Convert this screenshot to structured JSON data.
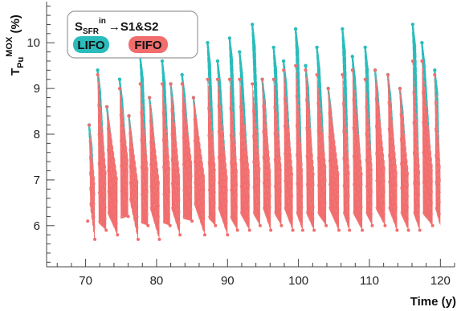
{
  "chart_data": {
    "type": "scatter",
    "title": "",
    "xlabel": "Time (y)",
    "ylabel": {
      "main": "T",
      "sub": "Pu",
      "sup": "MOX",
      "unit": " (%)"
    },
    "xlim": [
      64.5,
      122
    ],
    "ylim": [
      5.1,
      10.9
    ],
    "x_ticks": [
      70,
      80,
      90,
      100,
      110,
      120
    ],
    "y_ticks": [
      6,
      7,
      8,
      9,
      10
    ],
    "grid": false,
    "legend": {
      "placement": "top-left",
      "title": {
        "main": "S",
        "sub": "SFR",
        "sup": "in",
        "arrow": "→",
        "rest": "S1&S2"
      }
    },
    "series": [
      {
        "name": "LIFO",
        "color": "#2bbcbc",
        "peaks": [
          [
            70.5,
            8.2
          ],
          [
            71.7,
            9.4
          ],
          [
            73.0,
            8.6
          ],
          [
            74.8,
            9.2
          ],
          [
            76.1,
            8.4
          ],
          [
            77.7,
            9.7
          ],
          [
            79.0,
            8.8
          ],
          [
            80.8,
            9.6
          ],
          [
            82.0,
            9.1
          ],
          [
            83.6,
            9.3
          ],
          [
            85.2,
            8.8
          ],
          [
            87.2,
            10.0
          ],
          [
            88.6,
            9.6
          ],
          [
            90.3,
            10.1
          ],
          [
            91.7,
            9.8
          ],
          [
            93.5,
            10.4
          ],
          [
            94.9,
            9.2
          ],
          [
            96.5,
            9.9
          ],
          [
            97.9,
            9.6
          ],
          [
            99.6,
            10.3
          ],
          [
            101.0,
            9.5
          ],
          [
            102.6,
            9.9
          ],
          [
            104.2,
            9.0
          ],
          [
            106.2,
            10.3
          ],
          [
            107.6,
            9.7
          ],
          [
            109.4,
            9.9
          ],
          [
            110.8,
            9.4
          ],
          [
            112.6,
            9.3
          ],
          [
            114.3,
            9.0
          ],
          [
            116.1,
            10.4
          ],
          [
            117.4,
            10.0
          ],
          [
            119.2,
            9.4
          ]
        ]
      },
      {
        "name": "FIFO",
        "color": "#f26d6d",
        "peaks": [
          [
            70.5,
            8.2
          ],
          [
            71.7,
            9.3
          ],
          [
            73.0,
            8.6
          ],
          [
            74.8,
            9.0
          ],
          [
            76.1,
            8.4
          ],
          [
            77.7,
            9.1
          ],
          [
            79.0,
            8.8
          ],
          [
            80.8,
            9.1
          ],
          [
            82.0,
            9.1
          ],
          [
            83.6,
            9.1
          ],
          [
            85.2,
            8.8
          ],
          [
            87.2,
            9.2
          ],
          [
            88.6,
            9.2
          ],
          [
            90.3,
            9.2
          ],
          [
            91.7,
            9.2
          ],
          [
            93.5,
            9.1
          ],
          [
            94.9,
            9.2
          ],
          [
            96.5,
            9.2
          ],
          [
            97.9,
            9.4
          ],
          [
            99.6,
            9.5
          ],
          [
            101.0,
            9.4
          ],
          [
            102.6,
            9.3
          ],
          [
            104.2,
            9.0
          ],
          [
            106.2,
            9.3
          ],
          [
            107.6,
            9.4
          ],
          [
            109.4,
            9.2
          ],
          [
            110.8,
            9.4
          ],
          [
            112.6,
            9.3
          ],
          [
            114.3,
            9.0
          ],
          [
            116.1,
            9.6
          ],
          [
            117.4,
            9.6
          ],
          [
            119.2,
            9.3
          ]
        ],
        "troughs": [
          [
            70.3,
            6.1
          ],
          [
            71.3,
            5.7
          ],
          [
            72.9,
            5.9
          ],
          [
            74.5,
            5.8
          ],
          [
            76.0,
            6.2
          ],
          [
            77.4,
            5.7
          ],
          [
            78.8,
            6.0
          ],
          [
            80.4,
            5.7
          ],
          [
            81.9,
            6.0
          ],
          [
            83.3,
            5.8
          ],
          [
            85.0,
            6.1
          ],
          [
            86.8,
            5.8
          ],
          [
            88.3,
            6.0
          ],
          [
            90.0,
            5.8
          ],
          [
            91.4,
            5.9
          ],
          [
            93.1,
            5.9
          ],
          [
            94.6,
            6.0
          ],
          [
            96.1,
            5.9
          ],
          [
            97.6,
            6.0
          ],
          [
            99.2,
            5.9
          ],
          [
            100.6,
            5.9
          ],
          [
            102.2,
            5.9
          ],
          [
            103.9,
            6.0
          ],
          [
            105.7,
            5.9
          ],
          [
            107.2,
            5.9
          ],
          [
            109.0,
            5.9
          ],
          [
            110.4,
            6.0
          ],
          [
            112.2,
            6.0
          ],
          [
            113.9,
            5.9
          ],
          [
            115.5,
            5.9
          ],
          [
            117.1,
            5.9
          ],
          [
            118.9,
            6.0
          ]
        ]
      }
    ],
    "x_start": 70.0,
    "x_end": 120.0
  }
}
